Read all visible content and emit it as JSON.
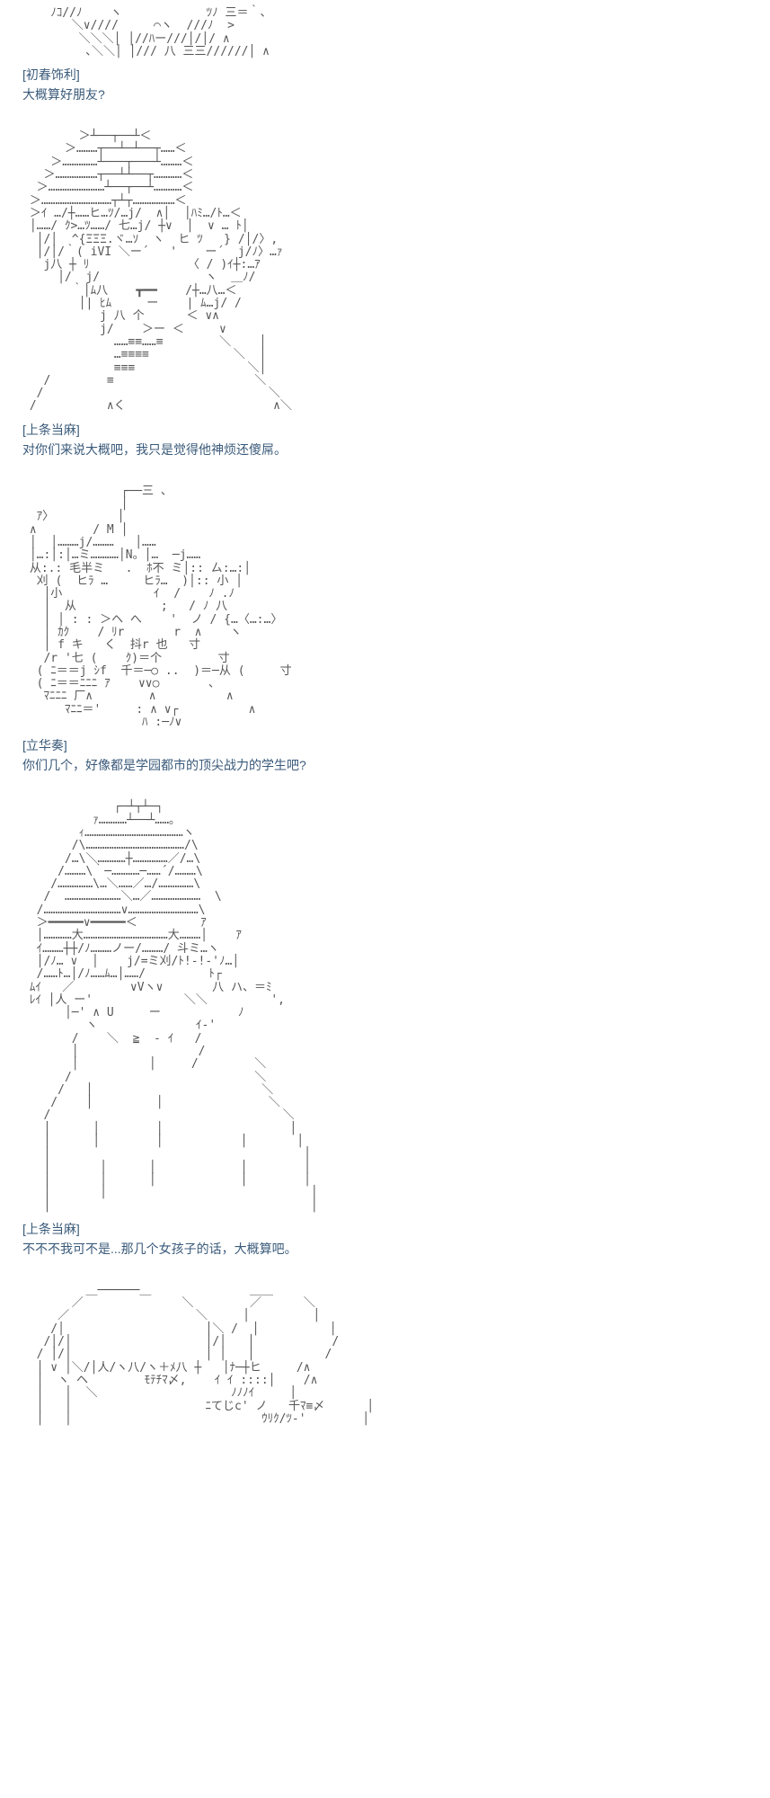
{
  "blocks": [
    {
      "art": "    ﾉｺ//ﾉ    ヽ            ﾂﾉ 三＝｀、\n       ＼∨////     ⌒ヽ  ///ﾉ  >\n        ＼＼＼│ │//ﾊー///│/│/ ∧\n         ､＼＼│ │/// 八 三三//////│ ∧",
      "speaker": "[初春饰利]",
      "text": "大概算好朋友?"
    },
    {
      "art": "        ＞┴──┬──┴＜\n      ＞………┬──┴─┴──┬……＜\n    ＞……………┴───┬───┴………＜\n   ＞………………┬──┴┴──┬…………＜\n  ＞……………………┴──┬──┴…………＜\n ＞…………………………┬┴┬………………＜\n ＞ｲ …/┼……ヒ…ﾂ/…j/  ∧│  │ﾊﾐ…/ﾄ…＜\n │……/ ｸ>…ﾂ……/ 七…j/ ┼∨  │  ∨ … ﾄ│\n  │/│  ^{ΞΞΞ.ヾ…ｿ  ヽ  ヒ ﾂ   } /│/〉,\n  │/│/｀( iVI ＼ー´   '    ー´  j/ﾉ〉…ｧ\n   j八 ┼ ﾘ              〈 / )ｲ┼:…ｱ\n     │/  j/               ヽ  ＿ﾉ/\n       ｀│ﾑ八    ┳━━    /┼…八…＜\n        │| ﾋﾑ     ー    | ﾑ…j/ /\n           j 八 个      ＜ ∨∧\n           j/    ＞ー ＜     ∨\n             ……≡≡……≡        ＼    │\n             …≡≡≡≡            ＼  │\n             ≡≡≡                ＼│\n   /        ≡                    ＼\n  /                                ＼\n /          ∧く                     ∧＼",
      "speaker": "[上条当麻]",
      "text": "对你们来说大概吧，我只是觉得他神烦还傻屌。"
    },
    {
      "art": "              ┌──三 、\n              │\n  ｱ〉         │\n ∧        / M │\n │  │………j/………   │……\n │…:│:│…ミ…………│N。│…  ─j……\n 从:.: 毛半ミ   .  ﾎ不 ミ│:: ㄙ:…:│\n  刈 (  ヒﾗ …     ヒﾗ…  )│:: 小 │\n   │小             ｲ  /    ﾉ .ﾉ\n   │  从            ;   / ﾉ 八\n   │ │ : : ＞ヘ へ    '  ノ / {…〈…:…〉\n   │ ｶｸ    / ﾘr       r  ∧    ヽ\n   │ f キ   く  抖r 也   寸\n   /r '七 (    ｸ)＝个        寸\n  ( ﾆ＝＝j ｼf  千＝─○ ..  )＝─从 (     寸\n  ( ﾆ＝＝ﾆﾆﾆ ｱ    ∨∨○       ､\n   ﾏﾆﾆﾆ 厂∧        ∧          ∧\n      ﾏﾆﾆ＝'     : ∧ ∨┌          ∧\n                 ﾊ :─ﾉ∨",
      "speaker": "[立华奏]",
      "text": "你们几个，好像都是学园都市的顶尖战力的学生吧?"
    },
    {
      "art": "             ┌─┴┬┴─┐\n          ｧ…………┴──┴……｡\n        ｨ……………………………………ヽ\n       /\\……………………………………/\\\n      /…\\＼…………┼……………／/…\\\n     /………\\｀─…………─……´/………\\\n    /……………\\…＼……／…/……………\\\n   /  ……………………＼…／…………………  \\\n  /……………………………∨…………………………\\\n  ＞━━━━━∨━━━━━＜         ｱ\n  │…………大………………………………大………│    ｱ\n  ｲ………┼┼/ﾉ………ノー/………/ 斗ミ…ヽ\n  │/ﾉ… ∨  │    j/=ミ刈/ﾄ!-!-'ﾉ…│\n  /……ﾄ…│/ﾉ……ﾑ…│……/         ﾄ┌\n ﾑｲ   ／        ∨Vヽ∨       八 ハ、＝ﾐ\n ﾚｲ │人 ー'             ＼＼         ',\n      │─' ∧ U     ー           ﾉ\n         ヽ              ｲ-'\n       /    ＼  ≧  - ｲ   /\n       │                 /\n       │          │     /        ＼\n      /                          ＼\n     /   │                        ＼\n    /    │         │               ＼\n   /                                 ＼\n   │      │        │                  │\n   │      │        │           │       │\n   │                                    │\n   │       │      │            │        │\n   │       │      │            │        │\n   │       │                             │\n   │                                     │",
      "speaker": "[上条当麻]",
      "text": "不不不我可不是...那几个女孩子的话，大概算吧。"
    },
    {
      "art": "         ＿──────＿              ＿＿\n       ／              ＼        ／      ＼\n     ／                  ＼     │         │\n    /│                    │＼ /  │          │\n   /│/│                   │/│   │           /\n  / │/│                   │ │   │          /\n  │ ∨ │＼/│人/ヽ八/ヽ＋ﾒ八 ┼   │ﾅ─┼ヒ     /∧\n  │  ヽ ヘ        ﾓﾃﾁﾏ〆,    ｲ ｲ ::::│    /∧\n  │   │  ＼                   ﾉﾉﾉｲ     │\n  │   │                   ﾆてじc' ノ   千ﾏ≡〆      │\n  │   │                           ｳﾘｸ/ﾂ-'        │",
      "speaker": "",
      "text": ""
    }
  ],
  "colors": {
    "text": "#3a5a7a",
    "art": "#555555",
    "bg": "#ffffff"
  }
}
